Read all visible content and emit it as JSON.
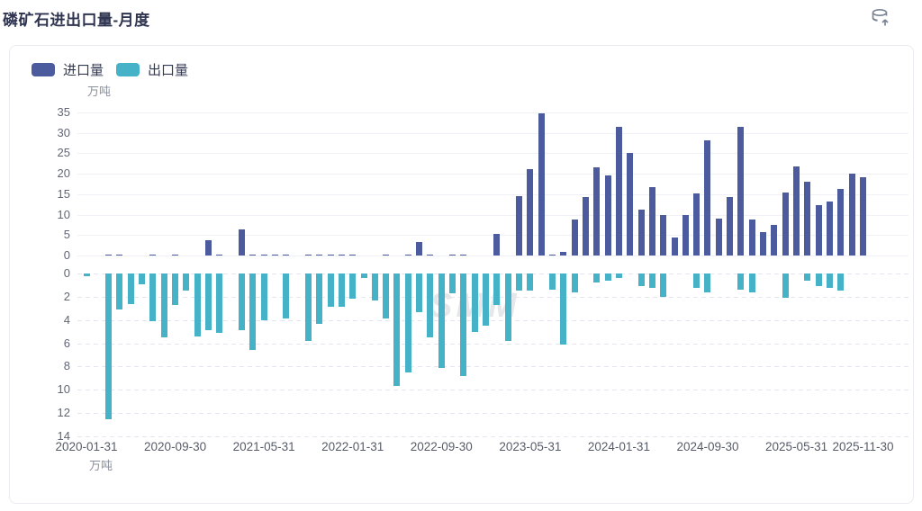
{
  "page": {
    "title": "磷矿石进出口量-月度",
    "watermark": "SMM"
  },
  "toolbar": {
    "export_button": "data-export"
  },
  "legend": {
    "items": [
      {
        "label": "进口量",
        "color": "#4C5A9E"
      },
      {
        "label": "出口量",
        "color": "#46B2C7"
      }
    ]
  },
  "chart_data": {
    "type": "bar",
    "title": "磷矿石进出口量-月度",
    "unit_label_top": "万吨",
    "unit_label_bottom": "万吨",
    "grid": true,
    "legend_position": "top-left",
    "upper_axis": {
      "label": "万吨",
      "min": 0,
      "max": 35,
      "step": 5,
      "ticks": [
        0,
        5,
        10,
        15,
        20,
        25,
        30,
        35
      ]
    },
    "lower_axis": {
      "label": "万吨",
      "min": 0,
      "max": 14,
      "step": 2,
      "inverted": true,
      "ticks": [
        0,
        2,
        4,
        6,
        8,
        10,
        12,
        14
      ]
    },
    "x_tick_labels": [
      "2020-01-31",
      "2020-09-30",
      "2021-05-31",
      "2022-01-31",
      "2022-09-30",
      "2023-05-31",
      "2024-01-31",
      "2024-09-30",
      "2025-05-31",
      "2025-11-30"
    ],
    "x_tick_month_indexes": [
      0,
      8,
      16,
      24,
      32,
      40,
      48,
      56,
      64,
      70
    ],
    "months": [
      "2020-01",
      "2020-02",
      "2020-03",
      "2020-04",
      "2020-05",
      "2020-06",
      "2020-07",
      "2020-08",
      "2020-09",
      "2020-10",
      "2020-11",
      "2020-12",
      "2021-01",
      "2021-02",
      "2021-03",
      "2021-04",
      "2021-05",
      "2021-06",
      "2021-07",
      "2021-08",
      "2021-09",
      "2021-10",
      "2021-11",
      "2021-12",
      "2022-01",
      "2022-02",
      "2022-03",
      "2022-04",
      "2022-05",
      "2022-06",
      "2022-07",
      "2022-08",
      "2022-09",
      "2022-10",
      "2022-11",
      "2022-12",
      "2023-01",
      "2023-02",
      "2023-03",
      "2023-04",
      "2023-05",
      "2023-06",
      "2023-07",
      "2023-08",
      "2023-09",
      "2023-10",
      "2023-11",
      "2023-12",
      "2024-01",
      "2024-02",
      "2024-03",
      "2024-04",
      "2024-05",
      "2024-06",
      "2024-07",
      "2024-08",
      "2024-09",
      "2024-10",
      "2024-11",
      "2024-12",
      "2025-01",
      "2025-02",
      "2025-03",
      "2025-04",
      "2025-05",
      "2025-06",
      "2025-07",
      "2025-08",
      "2025-09",
      "2025-10",
      "2025-11"
    ],
    "series": [
      {
        "name": "进口量",
        "axis": "upper",
        "color": "#4C5A9E",
        "values": [
          0,
          0,
          0.1,
          0.1,
          0,
          0,
          0.1,
          0,
          0.1,
          0,
          0,
          3.7,
          0.1,
          0,
          6.3,
          0.2,
          0.3,
          0.2,
          0.1,
          0,
          0.1,
          0.1,
          0.2,
          0.2,
          0.1,
          0,
          0,
          0.1,
          0,
          0.1,
          3.3,
          0.1,
          0,
          0.1,
          0.1,
          0,
          0,
          5.2,
          0,
          14.5,
          21.2,
          34.8,
          0.3,
          0.9,
          8.7,
          14.4,
          21.5,
          19.7,
          31.5,
          25.0,
          11.2,
          16.8,
          9.9,
          4.4,
          9.9,
          15.1,
          28.2,
          9.0,
          14.4,
          31.5,
          8.8,
          5.8,
          7.5,
          15.5,
          21.8,
          18.1,
          12.3,
          13.1,
          16.2,
          20.0,
          19.1
        ]
      },
      {
        "name": "出口量",
        "axis": "lower",
        "color": "#46B2C7",
        "values": [
          0.25,
          0,
          12.5,
          3.1,
          2.6,
          0.9,
          4.1,
          5.5,
          2.7,
          1.5,
          5.4,
          4.9,
          5.1,
          0,
          4.9,
          6.6,
          4.0,
          0,
          3.9,
          0,
          5.8,
          4.3,
          2.9,
          2.9,
          2.2,
          0.4,
          2.3,
          3.9,
          9.7,
          8.5,
          3.3,
          5.5,
          8.1,
          1.7,
          8.8,
          5.0,
          4.5,
          2.7,
          5.8,
          1.5,
          1.5,
          0,
          1.4,
          6.1,
          1.6,
          0,
          0.8,
          0.6,
          0.4,
          0,
          1.1,
          1.2,
          2.0,
          0,
          0,
          1.2,
          1.6,
          0,
          0,
          1.4,
          1.6,
          0,
          0,
          2.1,
          0,
          0.6,
          1.1,
          1.2,
          1.5,
          0,
          0
        ]
      }
    ]
  }
}
